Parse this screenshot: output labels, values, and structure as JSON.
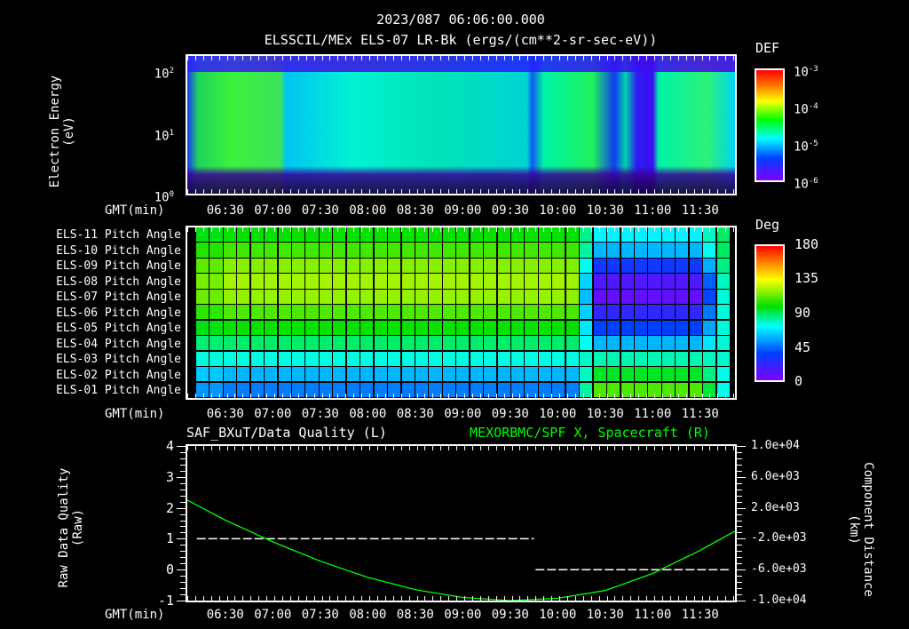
{
  "header": {
    "timestamp": "2023/087 06:06:00.000",
    "title": "ELSSCIL/MEx ELS-07 LR-Bk  (ergs/(cm**2-sr-sec-eV))"
  },
  "x_axis": {
    "label": "GMT(min)",
    "ticks": [
      "06:30",
      "07:00",
      "07:30",
      "08:00",
      "08:30",
      "09:00",
      "09:30",
      "10:00",
      "10:30",
      "11:00",
      "11:30"
    ]
  },
  "chart_data": [
    {
      "type": "heatmap",
      "title": "ELSSCIL/MEx ELS-07 LR-Bk (ergs/(cm**2-sr-sec-eV))",
      "xlabel": "GMT(min)",
      "ylabel": "Electron Energy (eV)",
      "yscale": "log",
      "ylim": [
        1,
        150
      ],
      "y_ticks": [
        "10^0",
        "10^1",
        "10^2"
      ],
      "x_ticks": [
        "06:30",
        "07:00",
        "07:30",
        "08:00",
        "08:30",
        "09:00",
        "09:30",
        "10:00",
        "10:30",
        "11:00",
        "11:30"
      ],
      "colorbar": {
        "label": "DEF",
        "ticks": [
          "10^-6",
          "10^-5",
          "10^-4",
          "10^-3"
        ],
        "range": [
          1e-06,
          0.001
        ],
        "scale": "log"
      }
    },
    {
      "type": "heatmap",
      "title": "Pitch Angle",
      "xlabel": "GMT(min)",
      "rows": [
        "ELS-11 Pitch Angle",
        "ELS-10 Pitch Angle",
        "ELS-09 Pitch Angle",
        "ELS-08 Pitch Angle",
        "ELS-07 Pitch Angle",
        "ELS-06 Pitch Angle",
        "ELS-05 Pitch Angle",
        "ELS-04 Pitch Angle",
        "ELS-03 Pitch Angle",
        "ELS-02 Pitch Angle",
        "ELS-01 Pitch Angle"
      ],
      "approx_values_deg_early": [
        100,
        108,
        118,
        122,
        120,
        110,
        100,
        88,
        75,
        60,
        50
      ],
      "approx_values_deg_late": [
        70,
        60,
        35,
        15,
        10,
        25,
        40,
        60,
        80,
        95,
        110
      ],
      "x_ticks": [
        "06:30",
        "07:00",
        "07:30",
        "08:00",
        "08:30",
        "09:00",
        "09:30",
        "10:00",
        "10:30",
        "11:00",
        "11:30"
      ],
      "colorbar": {
        "label": "Deg",
        "ticks": [
          "0",
          "45",
          "90",
          "135",
          "180"
        ],
        "range": [
          0,
          180
        ]
      }
    },
    {
      "type": "line",
      "title_left": "SAF_BXuT/Data Quality (L)",
      "title_right": "MEXORBMC/SPF X, Spacecraft (R)",
      "xlabel": "GMT(min)",
      "ylabel_left": "Raw Data Quality (Raw)",
      "ylabel_right": "Component Distance (km)",
      "ylim_left": [
        -1,
        4
      ],
      "ylim_right": [
        -10000,
        10000
      ],
      "y_ticks_left": [
        "-1",
        "0",
        "1",
        "2",
        "3",
        "4"
      ],
      "y_ticks_right": [
        "-1.0e+04",
        "-6.0e+03",
        "-2.0e+03",
        "2.0e+03",
        "6.0e+03",
        "1.0e+04"
      ],
      "series": [
        {
          "name": "Data Quality (L)",
          "color": "#ffffff",
          "style": "dashed",
          "x": [
            "06:12",
            "09:45",
            "09:46",
            "11:48"
          ],
          "values": [
            1,
            1,
            0,
            0
          ]
        },
        {
          "name": "SPF X Spacecraft (R)",
          "color": "#00ff00",
          "style": "solid",
          "x": [
            "06:06",
            "06:30",
            "07:00",
            "07:30",
            "08:00",
            "08:30",
            "09:00",
            "09:30",
            "10:00",
            "10:30",
            "11:00",
            "11:30",
            "11:52"
          ],
          "values": [
            3000,
            400,
            -2400,
            -4900,
            -7000,
            -8600,
            -9600,
            -10000,
            -9700,
            -8700,
            -6500,
            -3500,
            -1000
          ]
        }
      ]
    }
  ],
  "panels": {
    "energy": {
      "ylabel_line1": "Electron Energy",
      "ylabel_line2": "(eV)",
      "yticks": [
        {
          "base": "10",
          "exp": "2"
        },
        {
          "base": "10",
          "exp": "1"
        },
        {
          "base": "10",
          "exp": "0"
        }
      ],
      "colorbar_label": "DEF",
      "colorbar_ticks": [
        {
          "base": "10",
          "exp": "-3"
        },
        {
          "base": "10",
          "exp": "-4"
        },
        {
          "base": "10",
          "exp": "-5"
        },
        {
          "base": "10",
          "exp": "-6"
        }
      ]
    },
    "pitch": {
      "rows": [
        "ELS-11 Pitch Angle",
        "ELS-10 Pitch Angle",
        "ELS-09 Pitch Angle",
        "ELS-08 Pitch Angle",
        "ELS-07 Pitch Angle",
        "ELS-06 Pitch Angle",
        "ELS-05 Pitch Angle",
        "ELS-04 Pitch Angle",
        "ELS-03 Pitch Angle",
        "ELS-02 Pitch Angle",
        "ELS-01 Pitch Angle"
      ],
      "colorbar_label": "Deg",
      "colorbar_ticks": [
        "180",
        "135",
        "90",
        "45",
        "0"
      ]
    },
    "quality": {
      "title_left": "SAF_BXuT/Data Quality (L)",
      "title_right": "MEXORBMC/SPF X, Spacecraft (R)",
      "ylabel_left_line1": "Raw Data Quality",
      "ylabel_left_line2": "(Raw)",
      "ylabel_right_line1": "Component Distance",
      "ylabel_right_line2": "(km)",
      "yticks_left": [
        "4",
        "3",
        "2",
        "1",
        "0",
        "-1"
      ],
      "yticks_right": [
        "1.0e+04",
        "6.0e+03",
        "2.0e+03",
        "-2.0e+03",
        "-6.0e+03",
        "-1.0e+04"
      ],
      "right_title_color": "#00ff00"
    }
  }
}
